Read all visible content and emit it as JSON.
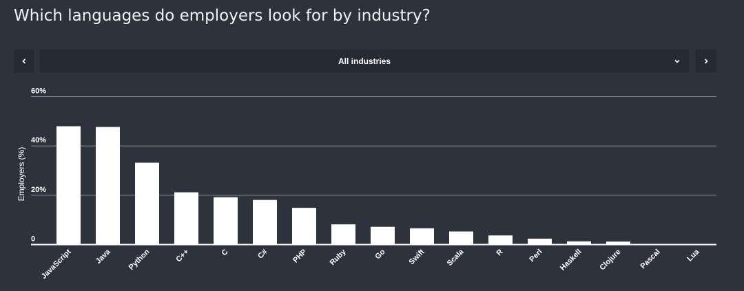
{
  "page": {
    "title": "Which languages do employers look for by industry?"
  },
  "selector": {
    "selected": "All industries",
    "prev_icon": "chevron-left-icon",
    "next_icon": "chevron-right-icon",
    "dropdown_icon": "chevron-down-icon"
  },
  "colors": {
    "background": "#2e323d",
    "control_bg": "#262a33",
    "bar": "#ffffff",
    "gridline": "#8a8e96",
    "axis": "#ffffff"
  },
  "chart_data": {
    "type": "bar",
    "title": "",
    "xlabel": "",
    "ylabel": "Employers (%)",
    "ylim": [
      0,
      60
    ],
    "yticks": [
      {
        "value": 0,
        "label": "0"
      },
      {
        "value": 20,
        "label": "20%"
      },
      {
        "value": 40,
        "label": "40%"
      },
      {
        "value": 60,
        "label": "60%"
      }
    ],
    "grid": true,
    "categories": [
      "JavaScript",
      "Java",
      "Python",
      "C++",
      "C",
      "C#",
      "PHP",
      "Ruby",
      "Go",
      "Swift",
      "Scala",
      "R",
      "Perl",
      "Haskell",
      "Clojure",
      "Pascal",
      "Lua"
    ],
    "values": [
      48,
      47.7,
      33.2,
      21.2,
      19.2,
      18.1,
      14.9,
      8.2,
      7.2,
      6.6,
      5.3,
      3.7,
      2.4,
      1.3,
      1.2,
      0.2,
      0.1
    ]
  }
}
